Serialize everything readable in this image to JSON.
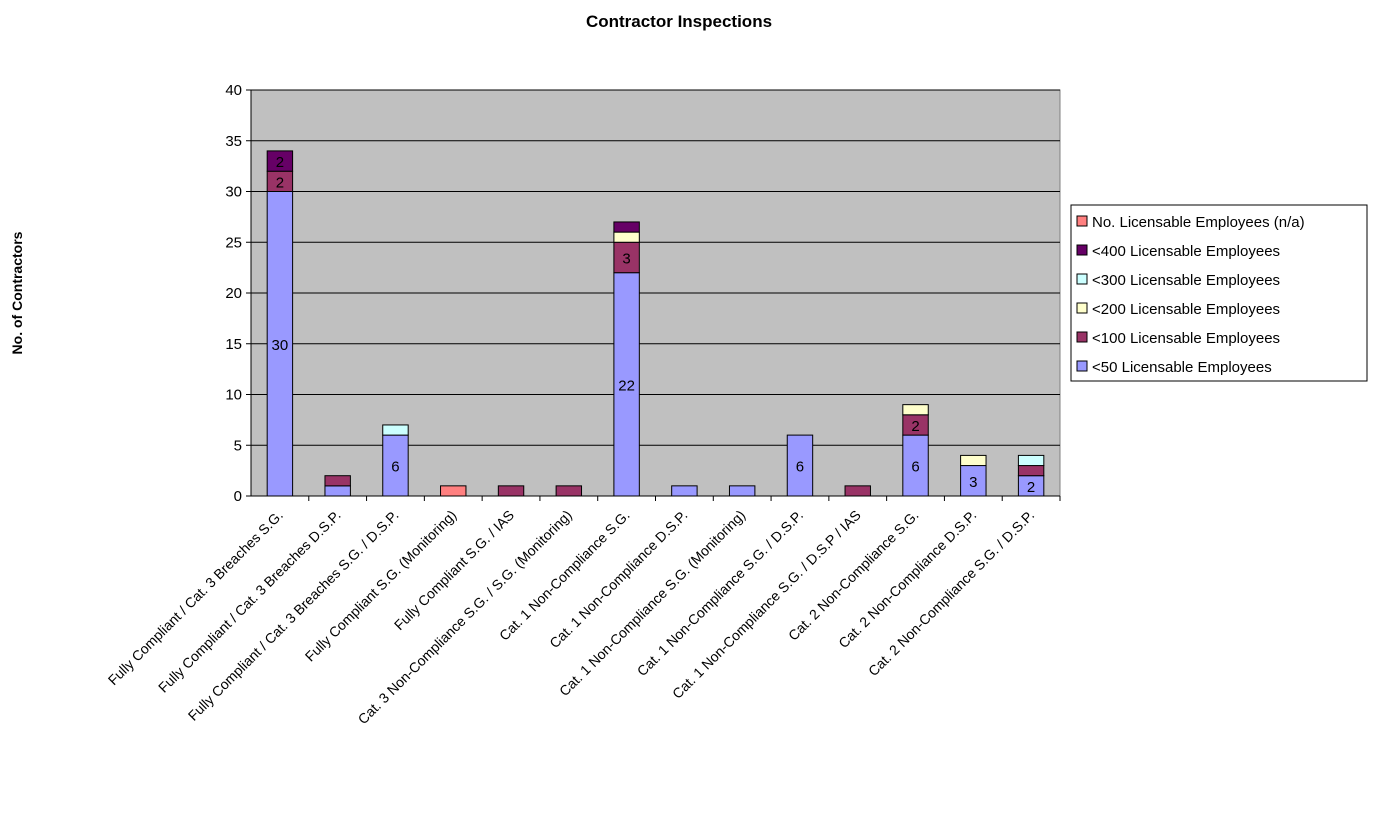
{
  "chart_data": {
    "type": "bar",
    "stacked": true,
    "title": "Contractor Inspections",
    "xlabel": "",
    "ylabel": "No. of Contractors",
    "ylim": [
      0,
      40
    ],
    "yticks": [
      0,
      5,
      10,
      15,
      20,
      25,
      30,
      35,
      40
    ],
    "grid": true,
    "plot_background": "#c0c0c0",
    "legend_position": "right",
    "categories": [
      "Fully Compliant / Cat. 3 Breaches S.G.",
      "Fully Compliant / Cat. 3 Breaches D.S.P.",
      "Fully Compliant / Cat. 3 Breaches S.G. / D.S.P.",
      "Fully Compliant S.G. (Monitoring)",
      "Fully Compliant S.G. / IAS",
      "Cat. 3 Non-Compliance S.G. / S.G. (Monitoring)",
      "Cat. 1 Non-Compliance S.G.",
      "Cat. 1 Non-Compliance D.S.P.",
      "Cat. 1 Non-Compliance S.G. (Monitoring)",
      "Cat. 1 Non-Compliance S.G. / D.S.P.",
      "Cat. 1 Non-Compliance S.G. / D.S.P / IAS",
      "Cat. 2 Non-Compliance S.G.",
      "Cat. 2 Non-Compliance D.S.P.",
      "Cat. 2 Non-Compliance S.G. / D.S.P."
    ],
    "series": [
      {
        "name": "<50 Licensable Employees",
        "color": "#9999ff",
        "values": [
          30,
          1,
          6,
          0,
          0,
          0,
          22,
          1,
          1,
          6,
          0,
          6,
          3,
          2
        ],
        "labels": [
          "30",
          "",
          "6",
          "",
          "",
          "",
          "22",
          "",
          "",
          "6",
          "",
          "6",
          "3",
          "2"
        ]
      },
      {
        "name": "<100 Licensable Employees",
        "color": "#993366",
        "values": [
          2,
          1,
          0,
          0,
          1,
          1,
          3,
          0,
          0,
          0,
          1,
          2,
          0,
          1
        ],
        "labels": [
          "2",
          "",
          "",
          "",
          "",
          "",
          "3",
          "",
          "",
          "",
          "",
          "2",
          "",
          ""
        ]
      },
      {
        "name": "<200 Licensable Employees",
        "color": "#ffffcc",
        "values": [
          0,
          0,
          0,
          0,
          0,
          0,
          1,
          0,
          0,
          0,
          0,
          1,
          1,
          0
        ],
        "labels": [
          "",
          "",
          "",
          "",
          "",
          "",
          "",
          "",
          "",
          "",
          "",
          "",
          "",
          ""
        ]
      },
      {
        "name": "<300 Licensable Employees",
        "color": "#ccffff",
        "values": [
          0,
          0,
          1,
          0,
          0,
          0,
          0,
          0,
          0,
          0,
          0,
          0,
          0,
          1
        ],
        "labels": [
          "",
          "",
          "",
          "",
          "",
          "",
          "",
          "",
          "",
          "",
          "",
          "",
          "",
          ""
        ]
      },
      {
        "name": "<400 Licensable Employees",
        "color": "#660066",
        "values": [
          2,
          0,
          0,
          0,
          0,
          0,
          1,
          0,
          0,
          0,
          0,
          0,
          0,
          0
        ],
        "labels": [
          "2",
          "",
          "",
          "",
          "",
          "",
          "",
          "",
          "",
          "",
          "",
          "",
          "",
          ""
        ]
      },
      {
        "name": "No. Licensable Employees (n/a)",
        "color": "#ff8080",
        "values": [
          0,
          0,
          0,
          1,
          0,
          0,
          0,
          0,
          0,
          0,
          0,
          0,
          0,
          0
        ],
        "labels": [
          "",
          "",
          "",
          "",
          "",
          "",
          "",
          "",
          "",
          "",
          "",
          "",
          "",
          ""
        ]
      }
    ]
  }
}
